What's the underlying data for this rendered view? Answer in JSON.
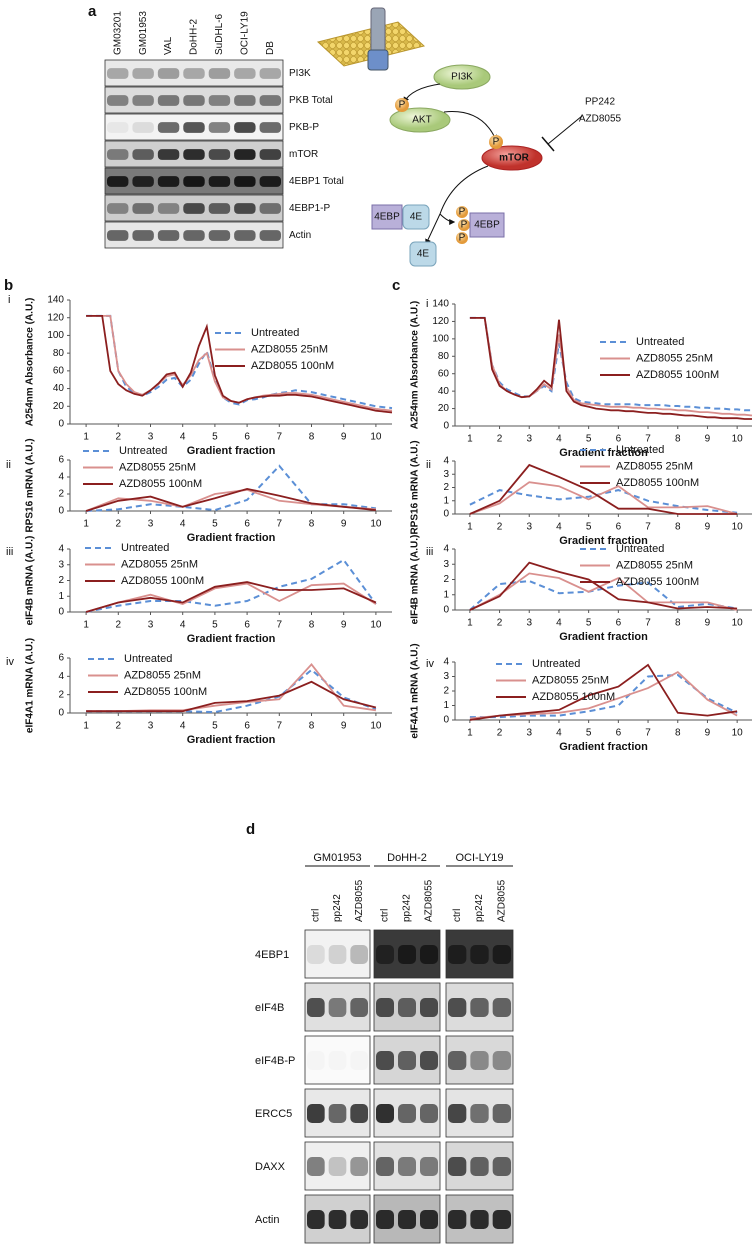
{
  "panel_labels": [
    "a",
    "b",
    "c",
    "d"
  ],
  "figure_a": {
    "lanes": [
      "GM03201",
      "GM01953",
      "VAL",
      "DoHH-2",
      "SuDHL-6",
      "OCI-LY19",
      "DB"
    ],
    "rows": [
      "PI3K",
      "PKB Total",
      "PKB-P",
      "mTOR",
      "4EBP1 Total",
      "4EBP1-P",
      "Actin"
    ]
  },
  "pathway": {
    "pi3k": "PI3K",
    "akt": "AKT",
    "mtor": "mTOR",
    "phospho": "P",
    "inhibitors": [
      "PP242",
      "AZD8055"
    ],
    "eif4e": "4E",
    "bp": "4EBP"
  },
  "chart_data": [
    {
      "type": "line",
      "label": "i",
      "ylabel": "A254nm Absorbance (A.U.)",
      "xlabel": "Gradient fraction",
      "x": [
        1,
        1.25,
        1.5,
        1.75,
        2,
        2.25,
        2.5,
        2.75,
        3,
        3.25,
        3.5,
        3.75,
        4,
        4.25,
        4.5,
        4.75,
        5,
        5.25,
        5.5,
        5.75,
        6,
        6.25,
        6.5,
        6.75,
        7,
        7.25,
        7.5,
        7.75,
        8,
        8.25,
        8.5,
        8.75,
        9,
        9.25,
        9.5,
        9.75,
        10,
        10.25,
        10.5
      ],
      "xlim": [
        0.5,
        10.5
      ],
      "xticks": [
        1,
        2,
        3,
        4,
        5,
        6,
        7,
        8,
        9,
        10
      ],
      "ylim": [
        0,
        140
      ],
      "yticks": [
        0,
        20,
        40,
        60,
        80,
        100,
        120,
        140
      ],
      "series": [
        {
          "name": "Untreated",
          "color": "#5b8fd6",
          "style": "dashed",
          "values": [
            122,
            122,
            122,
            122,
            60,
            42,
            35,
            32,
            36,
            42,
            50,
            52,
            42,
            50,
            68,
            82,
            50,
            30,
            24,
            22,
            27,
            28,
            30,
            33,
            35,
            36,
            38,
            37,
            36,
            34,
            32,
            30,
            28,
            26,
            24,
            22,
            20,
            19,
            18
          ]
        },
        {
          "name": "AZD8055 25nM",
          "color": "#d9908e",
          "style": "solid",
          "values": [
            122,
            122,
            122,
            122,
            60,
            45,
            36,
            33,
            38,
            45,
            54,
            56,
            44,
            55,
            72,
            80,
            48,
            30,
            26,
            24,
            28,
            30,
            32,
            33,
            34,
            35,
            35,
            34,
            33,
            31,
            29,
            27,
            25,
            23,
            21,
            19,
            17,
            16,
            15
          ]
        },
        {
          "name": "AZD8055 100nM",
          "color": "#8b1f1f",
          "style": "solid",
          "values": [
            122,
            122,
            122,
            60,
            45,
            38,
            34,
            32,
            38,
            46,
            56,
            58,
            42,
            58,
            88,
            110,
            55,
            32,
            26,
            24,
            28,
            30,
            31,
            32,
            32,
            33,
            33,
            32,
            31,
            29,
            27,
            25,
            23,
            21,
            19,
            17,
            15,
            14,
            13
          ]
        }
      ]
    },
    {
      "type": "line",
      "label": "ii",
      "ylabel": "RPS16 mRNA (A.U.)",
      "xlabel": "Gradient fraction",
      "x": [
        1,
        2,
        3,
        4,
        5,
        6,
        7,
        8,
        9,
        10
      ],
      "xlim": [
        0.5,
        10.5
      ],
      "xticks": [
        1,
        2,
        3,
        4,
        5,
        6,
        7,
        8,
        9,
        10
      ],
      "ylim": [
        0,
        6
      ],
      "yticks": [
        0,
        2,
        4,
        6
      ],
      "series": [
        {
          "name": "Untreated",
          "color": "#5b8fd6",
          "style": "dashed",
          "values": [
            0,
            0.2,
            0.8,
            0.5,
            0.1,
            1.3,
            5.3,
            0.8,
            0.8,
            0.3
          ]
        },
        {
          "name": "AZD8055 25nM",
          "color": "#d9908e",
          "style": "solid",
          "values": [
            0,
            1.5,
            1.2,
            0.5,
            2.0,
            2.5,
            1.2,
            0.8,
            0.5,
            0.2
          ]
        },
        {
          "name": "AZD8055 100nM",
          "color": "#8b1f1f",
          "style": "solid",
          "values": [
            0,
            1.2,
            1.7,
            0.5,
            1.5,
            2.6,
            1.8,
            0.9,
            0.5,
            0.1
          ]
        }
      ]
    },
    {
      "type": "line",
      "label": "iii",
      "ylabel": "eIF4B mRNA (A.U.)",
      "xlabel": "Gradient fraction",
      "x": [
        1,
        2,
        3,
        4,
        5,
        6,
        7,
        8,
        9,
        10
      ],
      "xlim": [
        0.5,
        10.5
      ],
      "xticks": [
        1,
        2,
        3,
        4,
        5,
        6,
        7,
        8,
        9,
        10
      ],
      "ylim": [
        0,
        4
      ],
      "yticks": [
        0,
        1,
        2,
        3,
        4
      ],
      "series": [
        {
          "name": "Untreated",
          "color": "#5b8fd6",
          "style": "dashed",
          "values": [
            0,
            0.4,
            0.7,
            0.7,
            0.4,
            0.7,
            1.6,
            2.1,
            3.3,
            0.5
          ]
        },
        {
          "name": "AZD8055 25nM",
          "color": "#d9908e",
          "style": "solid",
          "values": [
            0,
            0.6,
            1.1,
            0.5,
            1.5,
            1.8,
            0.7,
            1.7,
            1.8,
            0.5
          ]
        },
        {
          "name": "AZD8055 100nM",
          "color": "#8b1f1f",
          "style": "solid",
          "values": [
            0,
            0.6,
            0.9,
            0.6,
            1.6,
            1.9,
            1.4,
            1.4,
            1.5,
            0.6
          ]
        }
      ]
    },
    {
      "type": "line",
      "label": "iv",
      "ylabel": "eIF4A1 mRNA (A.U.)",
      "xlabel": "Gradient fraction",
      "x": [
        1,
        2,
        3,
        4,
        5,
        6,
        7,
        8,
        9,
        10
      ],
      "xlim": [
        0.5,
        10.5
      ],
      "xticks": [
        1,
        2,
        3,
        4,
        5,
        6,
        7,
        8,
        9,
        10
      ],
      "ylim": [
        0,
        6
      ],
      "yticks": [
        0,
        2,
        4,
        6
      ],
      "series": [
        {
          "name": "Untreated",
          "color": "#5b8fd6",
          "style": "dashed",
          "values": [
            0.2,
            0.2,
            0.2,
            0.2,
            0.1,
            0.8,
            1.8,
            4.7,
            1.7,
            0.4
          ]
        },
        {
          "name": "AZD8055 25nM",
          "color": "#d9908e",
          "style": "solid",
          "values": [
            0.2,
            0.2,
            0.3,
            0.3,
            0.8,
            1.2,
            1.5,
            5.3,
            0.8,
            0.3
          ]
        },
        {
          "name": "AZD8055 100nM",
          "color": "#8b1f1f",
          "style": "solid",
          "values": [
            0.2,
            0.2,
            0.2,
            0.2,
            1.1,
            1.3,
            1.9,
            3.4,
            1.5,
            0.6
          ]
        }
      ]
    },
    {
      "type": "line",
      "label": "i",
      "ylabel": "A254nm Absorbance (A.U.)",
      "xlabel": "Gradient fraction",
      "x": [
        1,
        1.25,
        1.5,
        1.75,
        2,
        2.25,
        2.5,
        2.75,
        3,
        3.25,
        3.5,
        3.75,
        4,
        4.25,
        4.5,
        4.75,
        5,
        5.25,
        5.5,
        5.75,
        6,
        6.25,
        6.5,
        6.75,
        7,
        7.25,
        7.5,
        7.75,
        8,
        8.25,
        8.5,
        8.75,
        9,
        9.25,
        9.5,
        9.75,
        10,
        10.25,
        10.5
      ],
      "xlim": [
        0.5,
        10.5
      ],
      "xticks": [
        1,
        2,
        3,
        4,
        5,
        6,
        7,
        8,
        9,
        10
      ],
      "ylim": [
        0,
        140
      ],
      "yticks": [
        0,
        20,
        40,
        60,
        80,
        100,
        120,
        140
      ],
      "series": [
        {
          "name": "Untreated",
          "color": "#5b8fd6",
          "style": "dashed",
          "values": [
            124,
            124,
            124,
            70,
            50,
            42,
            38,
            34,
            34,
            40,
            46,
            40,
            95,
            50,
            32,
            28,
            27,
            26,
            25,
            25,
            25,
            25,
            25,
            24,
            24,
            24,
            24,
            23,
            23,
            22,
            22,
            21,
            21,
            20,
            20,
            19,
            19,
            18,
            18
          ]
        },
        {
          "name": "AZD8055 25nM",
          "color": "#d9908e",
          "style": "solid",
          "values": [
            124,
            124,
            124,
            70,
            48,
            40,
            36,
            33,
            34,
            40,
            48,
            42,
            105,
            45,
            30,
            26,
            25,
            24,
            23,
            22,
            22,
            22,
            21,
            21,
            20,
            20,
            19,
            19,
            18,
            18,
            17,
            16,
            16,
            15,
            14,
            14,
            13,
            13,
            12
          ]
        },
        {
          "name": "AZD8055 100nM",
          "color": "#8b1f1f",
          "style": "solid",
          "values": [
            124,
            124,
            124,
            65,
            46,
            40,
            36,
            33,
            34,
            42,
            52,
            45,
            122,
            40,
            28,
            24,
            22,
            20,
            19,
            18,
            18,
            17,
            17,
            16,
            15,
            15,
            14,
            14,
            13,
            12,
            12,
            11,
            10,
            10,
            9,
            9,
            9,
            8,
            8
          ]
        }
      ]
    },
    {
      "type": "line",
      "label": "ii",
      "ylabel": "RPS16 mRNA (A.U.)",
      "xlabel": "Gradient fraction",
      "x": [
        1,
        2,
        3,
        4,
        5,
        6,
        7,
        8,
        9,
        10
      ],
      "xlim": [
        0.5,
        10.5
      ],
      "xticks": [
        1,
        2,
        3,
        4,
        5,
        6,
        7,
        8,
        9,
        10
      ],
      "ylim": [
        0,
        4
      ],
      "yticks": [
        0,
        1,
        2,
        3,
        4
      ],
      "series": [
        {
          "name": "Untreated",
          "color": "#5b8fd6",
          "style": "dashed",
          "values": [
            0.7,
            1.8,
            1.4,
            1.1,
            1.3,
            1.8,
            1.0,
            0.6,
            0.3,
            0.1
          ]
        },
        {
          "name": "AZD8055 25nM",
          "color": "#d9908e",
          "style": "solid",
          "values": [
            0,
            0.8,
            2.4,
            2.1,
            1.1,
            2.1,
            0.5,
            0.5,
            0.6,
            0
          ]
        },
        {
          "name": "AZD8055 100nM",
          "color": "#8b1f1f",
          "style": "solid",
          "values": [
            0,
            1.0,
            3.7,
            2.8,
            1.8,
            0.4,
            0.4,
            0,
            0,
            0
          ]
        }
      ]
    },
    {
      "type": "line",
      "label": "iii",
      "ylabel": "eIF4B mRNA (A.U.)",
      "xlabel": "Gradient fraction",
      "x": [
        1,
        2,
        3,
        4,
        5,
        6,
        7,
        8,
        9,
        10
      ],
      "xlim": [
        0.5,
        10.5
      ],
      "xticks": [
        1,
        2,
        3,
        4,
        5,
        6,
        7,
        8,
        9,
        10
      ],
      "ylim": [
        0,
        4
      ],
      "yticks": [
        0,
        1,
        2,
        3,
        4
      ],
      "series": [
        {
          "name": "Untreated",
          "color": "#5b8fd6",
          "style": "dashed",
          "values": [
            0,
            1.7,
            1.9,
            1.1,
            1.2,
            1.6,
            1.8,
            0.2,
            0.4,
            0.1
          ]
        },
        {
          "name": "AZD8055 25nM",
          "color": "#d9908e",
          "style": "solid",
          "values": [
            0,
            1.0,
            2.4,
            2.1,
            1.2,
            2.1,
            0.5,
            0.5,
            0.5,
            0
          ]
        },
        {
          "name": "AZD8055 100nM",
          "color": "#8b1f1f",
          "style": "solid",
          "values": [
            0,
            0.9,
            3.1,
            2.5,
            2.0,
            0.7,
            0.5,
            0.1,
            0.2,
            0.1
          ]
        }
      ]
    },
    {
      "type": "line",
      "label": "iv",
      "ylabel": "eIF4A1 mRNA (A.U.)",
      "xlabel": "Gradient fraction",
      "x": [
        1,
        2,
        3,
        4,
        5,
        6,
        7,
        8,
        9,
        10
      ],
      "xlim": [
        0.5,
        10.5
      ],
      "xticks": [
        1,
        2,
        3,
        4,
        5,
        6,
        7,
        8,
        9,
        10
      ],
      "ylim": [
        0,
        4
      ],
      "yticks": [
        0,
        1,
        2,
        3,
        4
      ],
      "series": [
        {
          "name": "Untreated",
          "color": "#5b8fd6",
          "style": "dashed",
          "values": [
            0.2,
            0.2,
            0.3,
            0.3,
            0.6,
            1.0,
            3.0,
            3.1,
            1.5,
            0.5
          ]
        },
        {
          "name": "AZD8055 25nM",
          "color": "#d9908e",
          "style": "solid",
          "values": [
            0.1,
            0.3,
            0.4,
            0.5,
            0.8,
            1.5,
            2.2,
            3.3,
            1.4,
            0.3
          ]
        },
        {
          "name": "AZD8055 100nM",
          "color": "#8b1f1f",
          "style": "solid",
          "values": [
            0,
            0.3,
            0.5,
            0.7,
            1.7,
            2.3,
            3.8,
            0.5,
            0.3,
            0.6
          ]
        }
      ]
    }
  ],
  "figure_d": {
    "groups": [
      {
        "name": "GM01953",
        "lanes": [
          "ctrl",
          "pp242",
          "AZD8055"
        ]
      },
      {
        "name": "DoHH-2",
        "lanes": [
          "ctrl",
          "pp242",
          "AZD8055"
        ]
      },
      {
        "name": "OCI-LY19",
        "lanes": [
          "ctrl",
          "pp242",
          "AZD8055"
        ]
      }
    ],
    "rows": [
      "4EBP1",
      "eIF4B",
      "eIF4B-P",
      "ERCC5",
      "DAXX",
      "Actin"
    ]
  }
}
